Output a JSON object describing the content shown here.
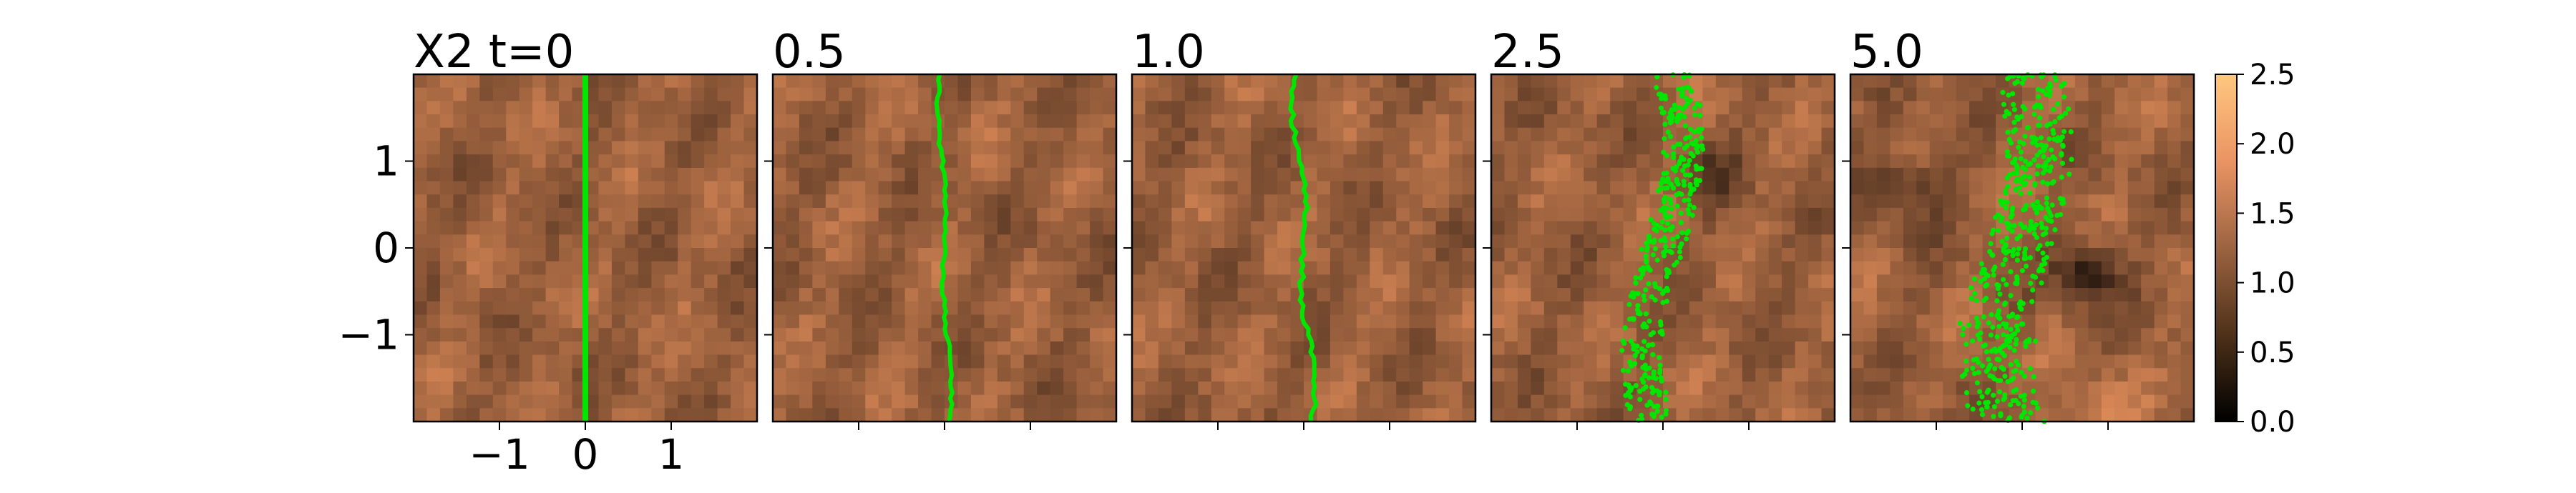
{
  "chart_data": {
    "type": "heatmap",
    "figure_label": "X2",
    "panels": [
      {
        "title": "X2 t=0",
        "t": 0,
        "scatter": 0.0,
        "style": "line"
      },
      {
        "title": "0.5",
        "t": 0.5,
        "scatter": 0.06,
        "style": "line"
      },
      {
        "title": "1.0",
        "t": 1.0,
        "scatter": 0.1,
        "style": "line"
      },
      {
        "title": "2.5",
        "t": 2.5,
        "scatter": 0.35,
        "style": "dots"
      },
      {
        "title": "5.0",
        "t": 5.0,
        "scatter": 0.55,
        "style": "dots"
      }
    ],
    "xlim": [
      -2,
      2
    ],
    "ylim": [
      -2,
      2
    ],
    "xticks": [
      -1,
      0,
      1
    ],
    "xtick_labels": [
      "−1",
      "0",
      "1"
    ],
    "yticks": [
      -1,
      0,
      1
    ],
    "ytick_labels": [
      "−1",
      "0",
      "1"
    ],
    "colorbar": {
      "min": 0.0,
      "max": 2.5,
      "ticks": [
        0.0,
        0.5,
        1.0,
        1.5,
        2.0,
        2.5
      ],
      "tick_labels": [
        "0.0",
        "0.5",
        "1.0",
        "1.5",
        "2.0",
        "2.5"
      ],
      "colormap": "copper"
    },
    "field_mean": 1.2,
    "grid": false,
    "line_color": "#00e600"
  }
}
